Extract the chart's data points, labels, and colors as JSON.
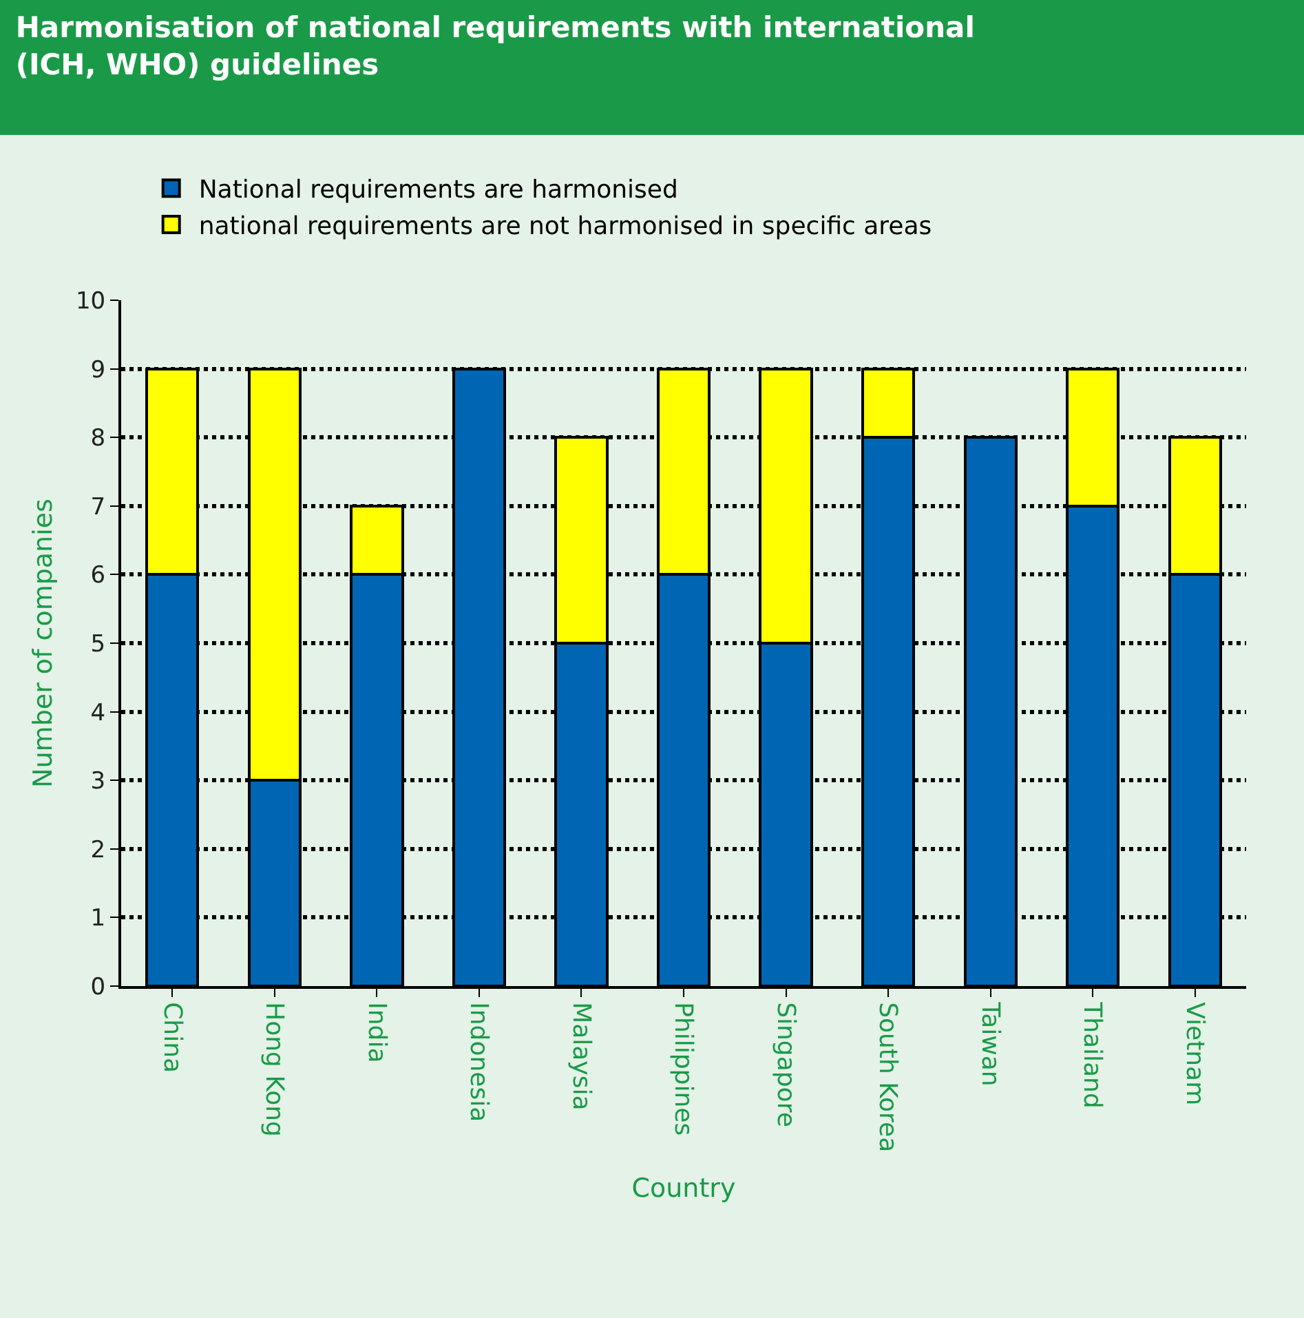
{
  "chart_data": {
    "type": "bar",
    "title": "Harmonisation of national requirements with international (ICH, WHO) guidelines",
    "xlabel": "Country",
    "ylabel": "Number of companies",
    "categories": [
      "China",
      "Hong Kong",
      "India",
      "Indonesia",
      "Malaysia",
      "Philippines",
      "Singapore",
      "South Korea",
      "Taiwan",
      "Thailand",
      "Vietnam"
    ],
    "stacked": true,
    "series": [
      {
        "name": "National requirements are harmonised",
        "color": "#0066b3",
        "values": [
          6,
          3,
          6,
          9,
          5,
          6,
          5,
          8,
          8,
          7,
          6
        ]
      },
      {
        "name": "national requirements are not harmonised in specific areas",
        "color": "#ffff00",
        "values": [
          3,
          6,
          1,
          0,
          3,
          3,
          4,
          1,
          0,
          2,
          2
        ]
      }
    ],
    "ylim": [
      0,
      10
    ],
    "yticks": [
      0,
      1,
      2,
      3,
      4,
      5,
      6,
      7,
      8,
      9,
      10
    ],
    "grid": "y",
    "legend": "top left"
  }
}
